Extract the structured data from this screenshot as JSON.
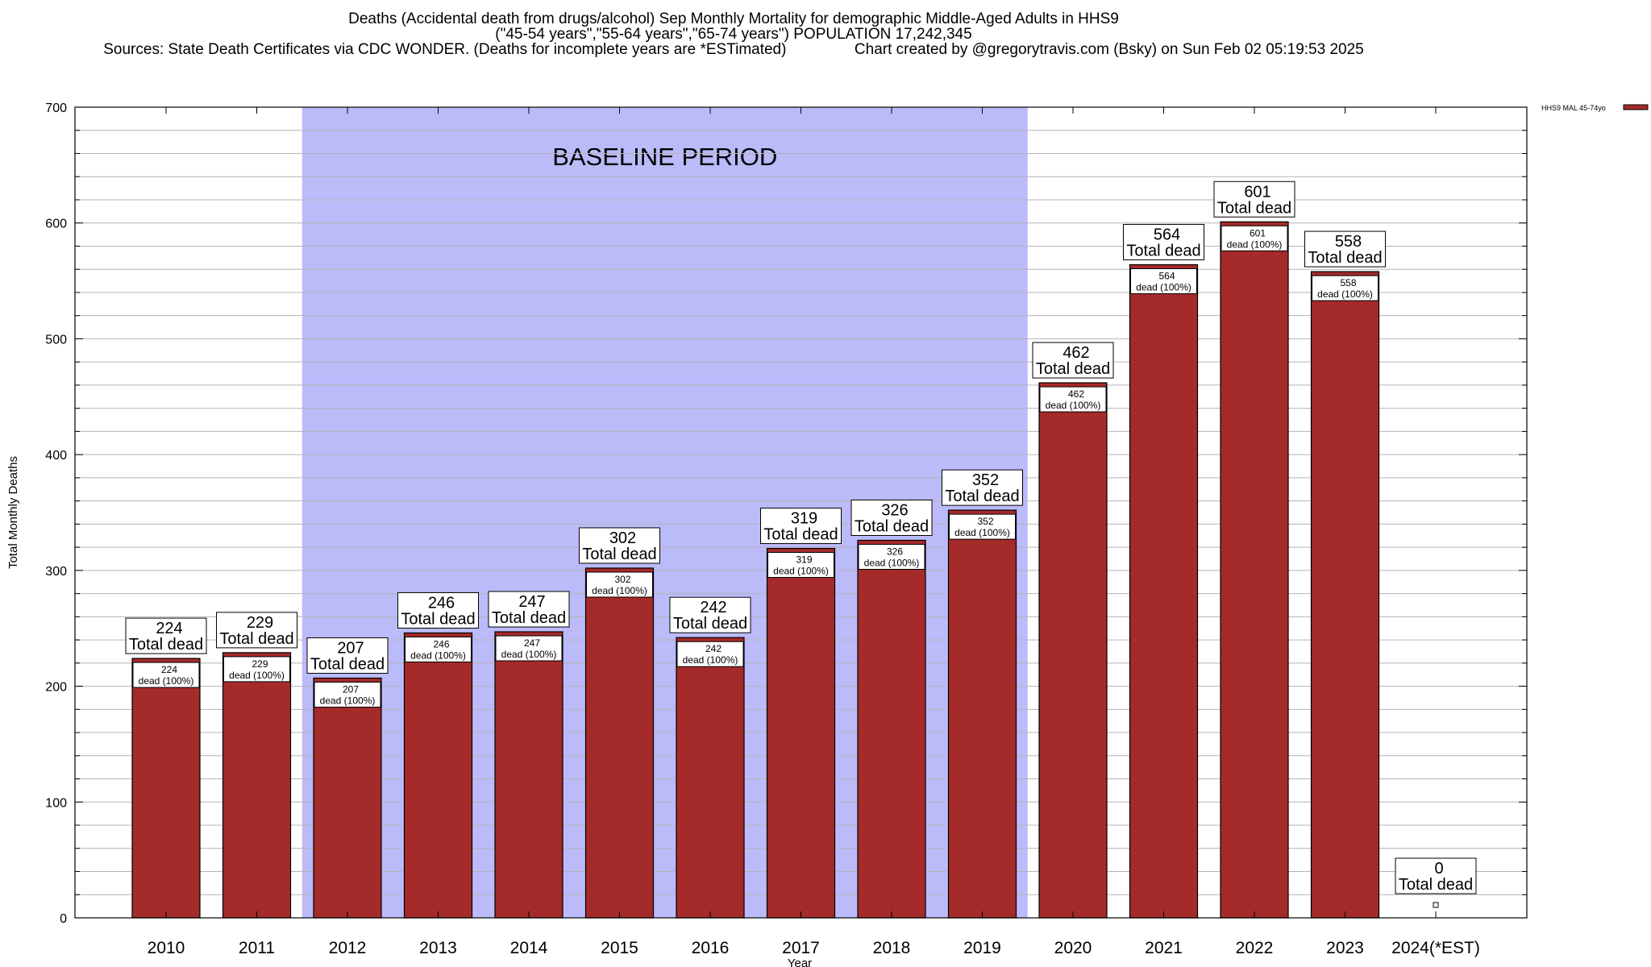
{
  "title_lines": [
    "Deaths (Accidental death from drugs/alcohol) Sep Monthly Mortality for demographic Middle-Aged Adults in HHS9",
    "(\"45-54 years\",\"55-64 years\",\"65-74 years\") POPULATION 17,242,345",
    "Sources: State Death Certificates via CDC WONDER. (Deaths for incomplete years are *ESTimated)                Chart created by @gregorytravis.com (Bsky) on Sun Feb 02 05:19:53 2025"
  ],
  "chart_data": {
    "type": "bar",
    "title": "Deaths (Accidental death from drugs/alcohol) Sep Monthly Mortality for demographic Middle-Aged Adults in HHS9",
    "xlabel": "Year",
    "ylabel": "Total Monthly Deaths",
    "ylim": [
      0,
      700
    ],
    "yticks": [
      0,
      100,
      200,
      300,
      400,
      500,
      600,
      700
    ],
    "y_minor_step": 20,
    "grid": true,
    "categories": [
      "2010",
      "2011",
      "2012",
      "2013",
      "2014",
      "2015",
      "2016",
      "2017",
      "2018",
      "2019",
      "2020",
      "2021",
      "2022",
      "2023",
      "2024(*EST)"
    ],
    "series": [
      {
        "name": "HHS9 MAL 45-74yo",
        "color": "#a52a2a",
        "values": [
          224,
          229,
          207,
          246,
          247,
          302,
          242,
          319,
          326,
          352,
          462,
          564,
          601,
          558,
          0
        ]
      }
    ],
    "bar_top_labels_line2": "Total dead",
    "bar_inner_labels_line2": "dead (100%)",
    "shaded_region": {
      "label": "BASELINE PERIOD",
      "from_category": "2012",
      "to_category": "2019",
      "color": "#bbbbfa"
    },
    "legend_position": "top-right"
  }
}
